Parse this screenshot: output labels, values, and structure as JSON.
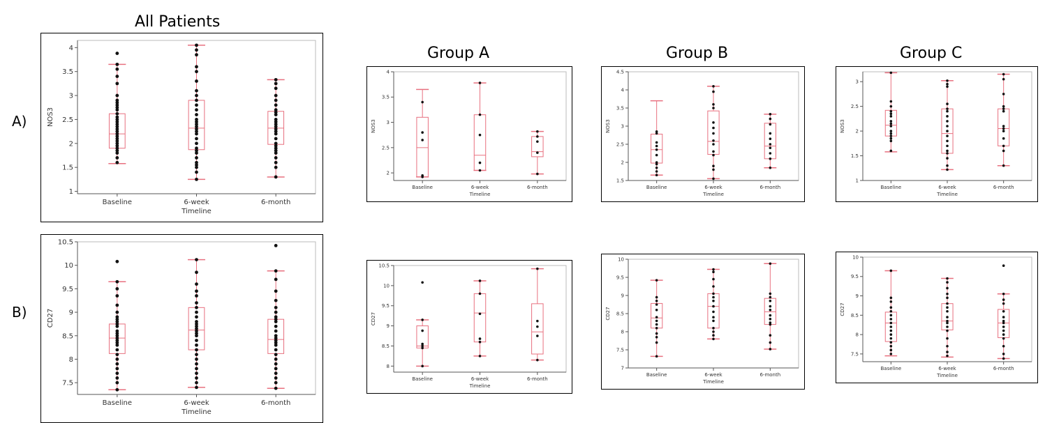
{
  "headers": {
    "all_patients": "All Patients",
    "group_a": "Group A",
    "group_b": "Group B",
    "group_c": "Group C"
  },
  "row_labels": {
    "a": "A)",
    "b": "B)"
  },
  "chart_data": [
    {
      "id": "nos3-all",
      "type": "box",
      "title": "",
      "xlabel": "Timeline",
      "ylabel": "NOS3",
      "categories": [
        "Baseline",
        "6-week",
        "6-month"
      ],
      "ylim": [
        0.95,
        4.15
      ],
      "yticks": [
        1,
        1.5,
        2,
        2.5,
        3,
        3.5,
        4
      ],
      "boxes": [
        {
          "min": 1.58,
          "q1": 1.9,
          "median": 2.2,
          "q3": 2.62,
          "max": 3.65
        },
        {
          "min": 1.25,
          "q1": 1.87,
          "median": 2.32,
          "q3": 2.9,
          "max": 4.05
        },
        {
          "min": 1.3,
          "q1": 1.98,
          "median": 2.32,
          "q3": 2.67,
          "max": 3.33
        }
      ],
      "points": [
        [
          3.88,
          3.65,
          3.55,
          3.4,
          3.25,
          3.0,
          2.9,
          2.85,
          2.8,
          2.75,
          2.7,
          2.62,
          2.55,
          2.5,
          2.45,
          2.4,
          2.35,
          2.3,
          2.25,
          2.2,
          2.15,
          2.1,
          2.05,
          2.0,
          1.95,
          1.9,
          1.85,
          1.8,
          1.7,
          1.6
        ],
        [
          4.05,
          3.95,
          3.85,
          3.6,
          3.5,
          3.3,
          3.1,
          3.0,
          2.9,
          2.8,
          2.7,
          2.6,
          2.5,
          2.45,
          2.4,
          2.35,
          2.3,
          2.25,
          2.2,
          2.1,
          2.0,
          1.9,
          1.85,
          1.8,
          1.7,
          1.6,
          1.55,
          1.5,
          1.4,
          1.25
        ],
        [
          3.33,
          3.25,
          3.15,
          3.0,
          2.9,
          2.8,
          2.7,
          2.65,
          2.6,
          2.5,
          2.45,
          2.4,
          2.35,
          2.3,
          2.25,
          2.2,
          2.1,
          2.0,
          1.95,
          1.9,
          1.85,
          1.8,
          1.7,
          1.6,
          1.5,
          1.3
        ]
      ]
    },
    {
      "id": "nos3-a",
      "type": "box",
      "title": "",
      "xlabel": "Timeline",
      "ylabel": "NOS3",
      "categories": [
        "Baseline",
        "6-week",
        "6-month"
      ],
      "ylim": [
        1.85,
        4.0
      ],
      "yticks": [
        2,
        2.5,
        3,
        3.5,
        4
      ],
      "boxes": [
        {
          "min": 1.92,
          "q1": 1.92,
          "median": 2.5,
          "q3": 3.1,
          "max": 3.65
        },
        {
          "min": 2.05,
          "q1": 2.05,
          "median": 2.35,
          "q3": 3.15,
          "max": 3.78
        },
        {
          "min": 1.98,
          "q1": 2.32,
          "median": 2.42,
          "q3": 2.72,
          "max": 2.82
        }
      ],
      "points": [
        [
          3.4,
          2.8,
          2.65,
          1.95,
          1.92
        ],
        [
          3.78,
          3.15,
          2.75,
          2.2,
          2.05
        ],
        [
          2.82,
          2.72,
          2.62,
          2.4,
          1.98
        ]
      ]
    },
    {
      "id": "nos3-b",
      "type": "box",
      "title": "",
      "xlabel": "Timeline",
      "ylabel": "NOS3",
      "categories": [
        "Baseline",
        "6-week",
        "6-month"
      ],
      "ylim": [
        1.5,
        4.5
      ],
      "yticks": [
        1.5,
        2,
        2.5,
        3,
        3.5,
        4,
        4.5
      ],
      "boxes": [
        {
          "min": 1.65,
          "q1": 1.98,
          "median": 2.35,
          "q3": 2.78,
          "max": 3.7
        },
        {
          "min": 1.55,
          "q1": 2.22,
          "median": 2.58,
          "q3": 3.42,
          "max": 4.1
        },
        {
          "min": 1.85,
          "q1": 2.1,
          "median": 2.45,
          "q3": 3.08,
          "max": 3.33
        }
      ],
      "points": [
        [
          2.85,
          2.8,
          2.55,
          2.45,
          2.35,
          2.2,
          2.0,
          1.95,
          1.85,
          1.75,
          1.65
        ],
        [
          4.1,
          3.95,
          3.6,
          3.5,
          3.1,
          2.95,
          2.8,
          2.6,
          2.5,
          2.3,
          2.2,
          1.9,
          1.8,
          1.55
        ],
        [
          3.33,
          3.2,
          3.05,
          2.8,
          2.65,
          2.5,
          2.4,
          2.25,
          2.1,
          1.85
        ]
      ]
    },
    {
      "id": "nos3-c",
      "type": "box",
      "title": "",
      "xlabel": "Timeline",
      "ylabel": "NOS3",
      "categories": [
        "Baseline",
        "6-week",
        "6-month"
      ],
      "ylim": [
        1.0,
        3.2
      ],
      "yticks": [
        1,
        1.5,
        2,
        2.5,
        3
      ],
      "boxes": [
        {
          "min": 1.58,
          "q1": 1.9,
          "median": 2.12,
          "q3": 2.42,
          "max": 3.18
        },
        {
          "min": 1.22,
          "q1": 1.55,
          "median": 1.95,
          "q3": 2.45,
          "max": 3.02
        },
        {
          "min": 1.3,
          "q1": 1.7,
          "median": 2.05,
          "q3": 2.45,
          "max": 3.15
        }
      ],
      "points": [
        [
          3.18,
          2.6,
          2.5,
          2.4,
          2.35,
          2.3,
          2.2,
          2.15,
          2.1,
          2.0,
          1.95,
          1.9,
          1.85,
          1.8,
          1.6
        ],
        [
          3.02,
          2.95,
          2.9,
          2.55,
          2.45,
          2.4,
          2.3,
          2.2,
          2.1,
          2.0,
          1.9,
          1.8,
          1.7,
          1.6,
          1.55,
          1.45,
          1.3,
          1.22
        ],
        [
          3.15,
          3.05,
          2.75,
          2.5,
          2.45,
          2.4,
          2.1,
          2.05,
          2.0,
          1.85,
          1.7,
          1.6,
          1.3
        ]
      ]
    },
    {
      "id": "cd27-all",
      "type": "box",
      "title": "",
      "xlabel": "Timeline",
      "ylabel": "CD27",
      "categories": [
        "Baseline",
        "6-week",
        "6-month"
      ],
      "ylim": [
        7.25,
        10.5
      ],
      "yticks": [
        7.5,
        8,
        8.5,
        9,
        9.5,
        10,
        10.5
      ],
      "boxes": [
        {
          "min": 7.35,
          "q1": 8.12,
          "median": 8.45,
          "q3": 8.75,
          "max": 9.65
        },
        {
          "min": 7.4,
          "q1": 8.2,
          "median": 8.62,
          "q3": 9.1,
          "max": 10.12
        },
        {
          "min": 7.38,
          "q1": 8.12,
          "median": 8.42,
          "q3": 8.85,
          "max": 9.88
        }
      ],
      "points": [
        [
          10.08,
          9.65,
          9.5,
          9.35,
          9.15,
          9.0,
          8.9,
          8.85,
          8.8,
          8.75,
          8.7,
          8.6,
          8.55,
          8.5,
          8.45,
          8.4,
          8.35,
          8.3,
          8.2,
          8.1,
          8.0,
          7.9,
          7.8,
          7.7,
          7.6,
          7.5,
          7.35
        ],
        [
          10.12,
          9.85,
          9.6,
          9.45,
          9.35,
          9.2,
          9.1,
          9.0,
          8.9,
          8.8,
          8.75,
          8.7,
          8.65,
          8.6,
          8.55,
          8.5,
          8.4,
          8.3,
          8.2,
          8.1,
          8.0,
          7.9,
          7.8,
          7.7,
          7.6,
          7.5,
          7.4
        ],
        [
          10.42,
          9.88,
          9.7,
          9.45,
          9.25,
          9.1,
          9.0,
          8.9,
          8.85,
          8.8,
          8.7,
          8.6,
          8.5,
          8.45,
          8.4,
          8.35,
          8.3,
          8.2,
          8.1,
          8.0,
          7.9,
          7.8,
          7.7,
          7.6,
          7.5,
          7.38
        ]
      ]
    },
    {
      "id": "cd27-a",
      "type": "box",
      "title": "",
      "xlabel": "Timeline",
      "ylabel": "CD27",
      "categories": [
        "Baseline",
        "6-week",
        "6-month"
      ],
      "ylim": [
        7.85,
        10.5
      ],
      "yticks": [
        8,
        8.5,
        9,
        9.5,
        10,
        10.5
      ],
      "boxes": [
        {
          "min": 8.0,
          "q1": 8.45,
          "median": 8.5,
          "q3": 9.0,
          "max": 9.15
        },
        {
          "min": 8.25,
          "q1": 8.6,
          "median": 9.32,
          "q3": 9.8,
          "max": 10.12
        },
        {
          "min": 8.15,
          "q1": 8.3,
          "median": 8.85,
          "q3": 9.55,
          "max": 10.42
        }
      ],
      "points": [
        [
          10.08,
          9.15,
          8.88,
          8.55,
          8.5,
          8.45,
          8.0
        ],
        [
          10.12,
          9.8,
          9.3,
          8.68,
          8.6,
          8.25
        ],
        [
          10.42,
          9.12,
          8.98,
          8.75,
          8.15
        ]
      ]
    },
    {
      "id": "cd27-b",
      "type": "box",
      "title": "",
      "xlabel": "Timeline",
      "ylabel": "CD27",
      "categories": [
        "Baseline",
        "6-week",
        "6-month"
      ],
      "ylim": [
        7.0,
        10.0
      ],
      "yticks": [
        7,
        7.5,
        8,
        8.5,
        9,
        9.5,
        10
      ],
      "boxes": [
        {
          "min": 7.32,
          "q1": 8.1,
          "median": 8.38,
          "q3": 8.78,
          "max": 9.42
        },
        {
          "min": 7.8,
          "q1": 8.1,
          "median": 8.7,
          "q3": 9.05,
          "max": 9.72
        },
        {
          "min": 7.52,
          "q1": 8.2,
          "median": 8.55,
          "q3": 8.92,
          "max": 9.88
        }
      ],
      "points": [
        [
          9.42,
          8.95,
          8.85,
          8.75,
          8.6,
          8.4,
          8.3,
          8.2,
          8.1,
          7.95,
          7.85,
          7.7,
          7.32
        ],
        [
          9.72,
          9.65,
          9.45,
          9.25,
          9.05,
          8.95,
          8.85,
          8.7,
          8.55,
          8.4,
          8.3,
          8.1,
          8.0,
          7.9,
          7.8
        ],
        [
          9.88,
          9.05,
          8.95,
          8.85,
          8.7,
          8.6,
          8.45,
          8.35,
          8.25,
          8.2,
          7.9,
          7.7,
          7.52
        ]
      ]
    },
    {
      "id": "cd27-c",
      "type": "box",
      "title": "",
      "xlabel": "Timeline",
      "ylabel": "CD27",
      "categories": [
        "Baseline",
        "6-week",
        "6-month"
      ],
      "ylim": [
        7.3,
        10.0
      ],
      "yticks": [
        7.5,
        8,
        8.5,
        9,
        9.5,
        10
      ],
      "boxes": [
        {
          "min": 7.45,
          "q1": 7.82,
          "median": 8.3,
          "q3": 8.58,
          "max": 9.65
        },
        {
          "min": 7.42,
          "q1": 8.12,
          "median": 8.35,
          "q3": 8.8,
          "max": 9.45
        },
        {
          "min": 7.38,
          "q1": 7.92,
          "median": 8.3,
          "q3": 8.65,
          "max": 9.05
        }
      ],
      "points": [
        [
          9.65,
          8.95,
          8.85,
          8.7,
          8.6,
          8.5,
          8.4,
          8.3,
          8.2,
          8.1,
          8.0,
          7.9,
          7.8,
          7.7,
          7.6,
          7.5
        ],
        [
          9.45,
          9.35,
          9.2,
          9.05,
          8.95,
          8.8,
          8.7,
          8.6,
          8.45,
          8.35,
          8.3,
          8.2,
          8.1,
          7.9,
          7.7,
          7.55,
          7.45
        ],
        [
          9.78,
          9.05,
          8.9,
          8.8,
          8.6,
          8.45,
          8.35,
          8.3,
          8.2,
          8.1,
          8.0,
          7.9,
          7.7,
          7.5,
          7.38
        ]
      ]
    }
  ]
}
